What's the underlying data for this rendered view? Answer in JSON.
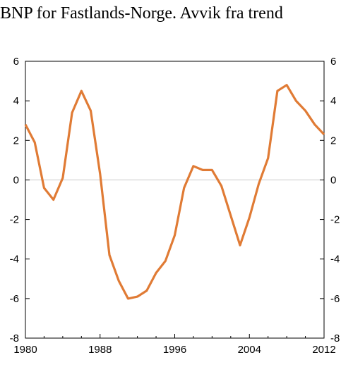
{
  "chart_data": {
    "type": "line",
    "title": "BNP for Fastlands-Norge. Avvik fra trend",
    "xlabel": "",
    "ylabel": "",
    "xlim": [
      1980,
      2012
    ],
    "ylim": [
      -8,
      6
    ],
    "x_ticks": [
      1980,
      1988,
      1996,
      2004,
      2012
    ],
    "x_tick_labels": [
      "1980",
      "1988",
      "1996",
      "2004",
      "2012"
    ],
    "y_ticks": [
      -8,
      -6,
      -4,
      -2,
      0,
      2,
      4,
      6
    ],
    "y_tick_labels": [
      "-8",
      "-6",
      "-4",
      "-2",
      "0",
      "2",
      "4",
      "6"
    ],
    "grid": false,
    "zero_line": true,
    "colors": {
      "series": "#E07B35",
      "axis": "#000000",
      "zero_line": "#c8c8c8"
    },
    "series": [
      {
        "x": [
          1980,
          1981,
          1982,
          1983,
          1984,
          1985,
          1986,
          1987,
          1988,
          1989,
          1990,
          1991,
          1992,
          1993,
          1994,
          1995,
          1996,
          1997,
          1998,
          1999,
          2000,
          2001,
          2002,
          2003,
          2004,
          2005,
          2006,
          2007,
          2008,
          2009,
          2010,
          2011,
          2012
        ],
        "y": [
          2.8,
          1.9,
          -0.4,
          -1.0,
          0.1,
          3.4,
          4.5,
          3.5,
          0.3,
          -3.8,
          -5.1,
          -6.0,
          -5.9,
          -5.6,
          -4.7,
          -4.1,
          -2.8,
          -0.4,
          0.7,
          0.5,
          0.5,
          -0.3,
          -1.8,
          -3.3,
          -1.9,
          -0.2,
          1.1,
          4.5,
          4.8,
          4.0,
          3.5,
          2.8,
          2.3
        ]
      }
    ]
  }
}
